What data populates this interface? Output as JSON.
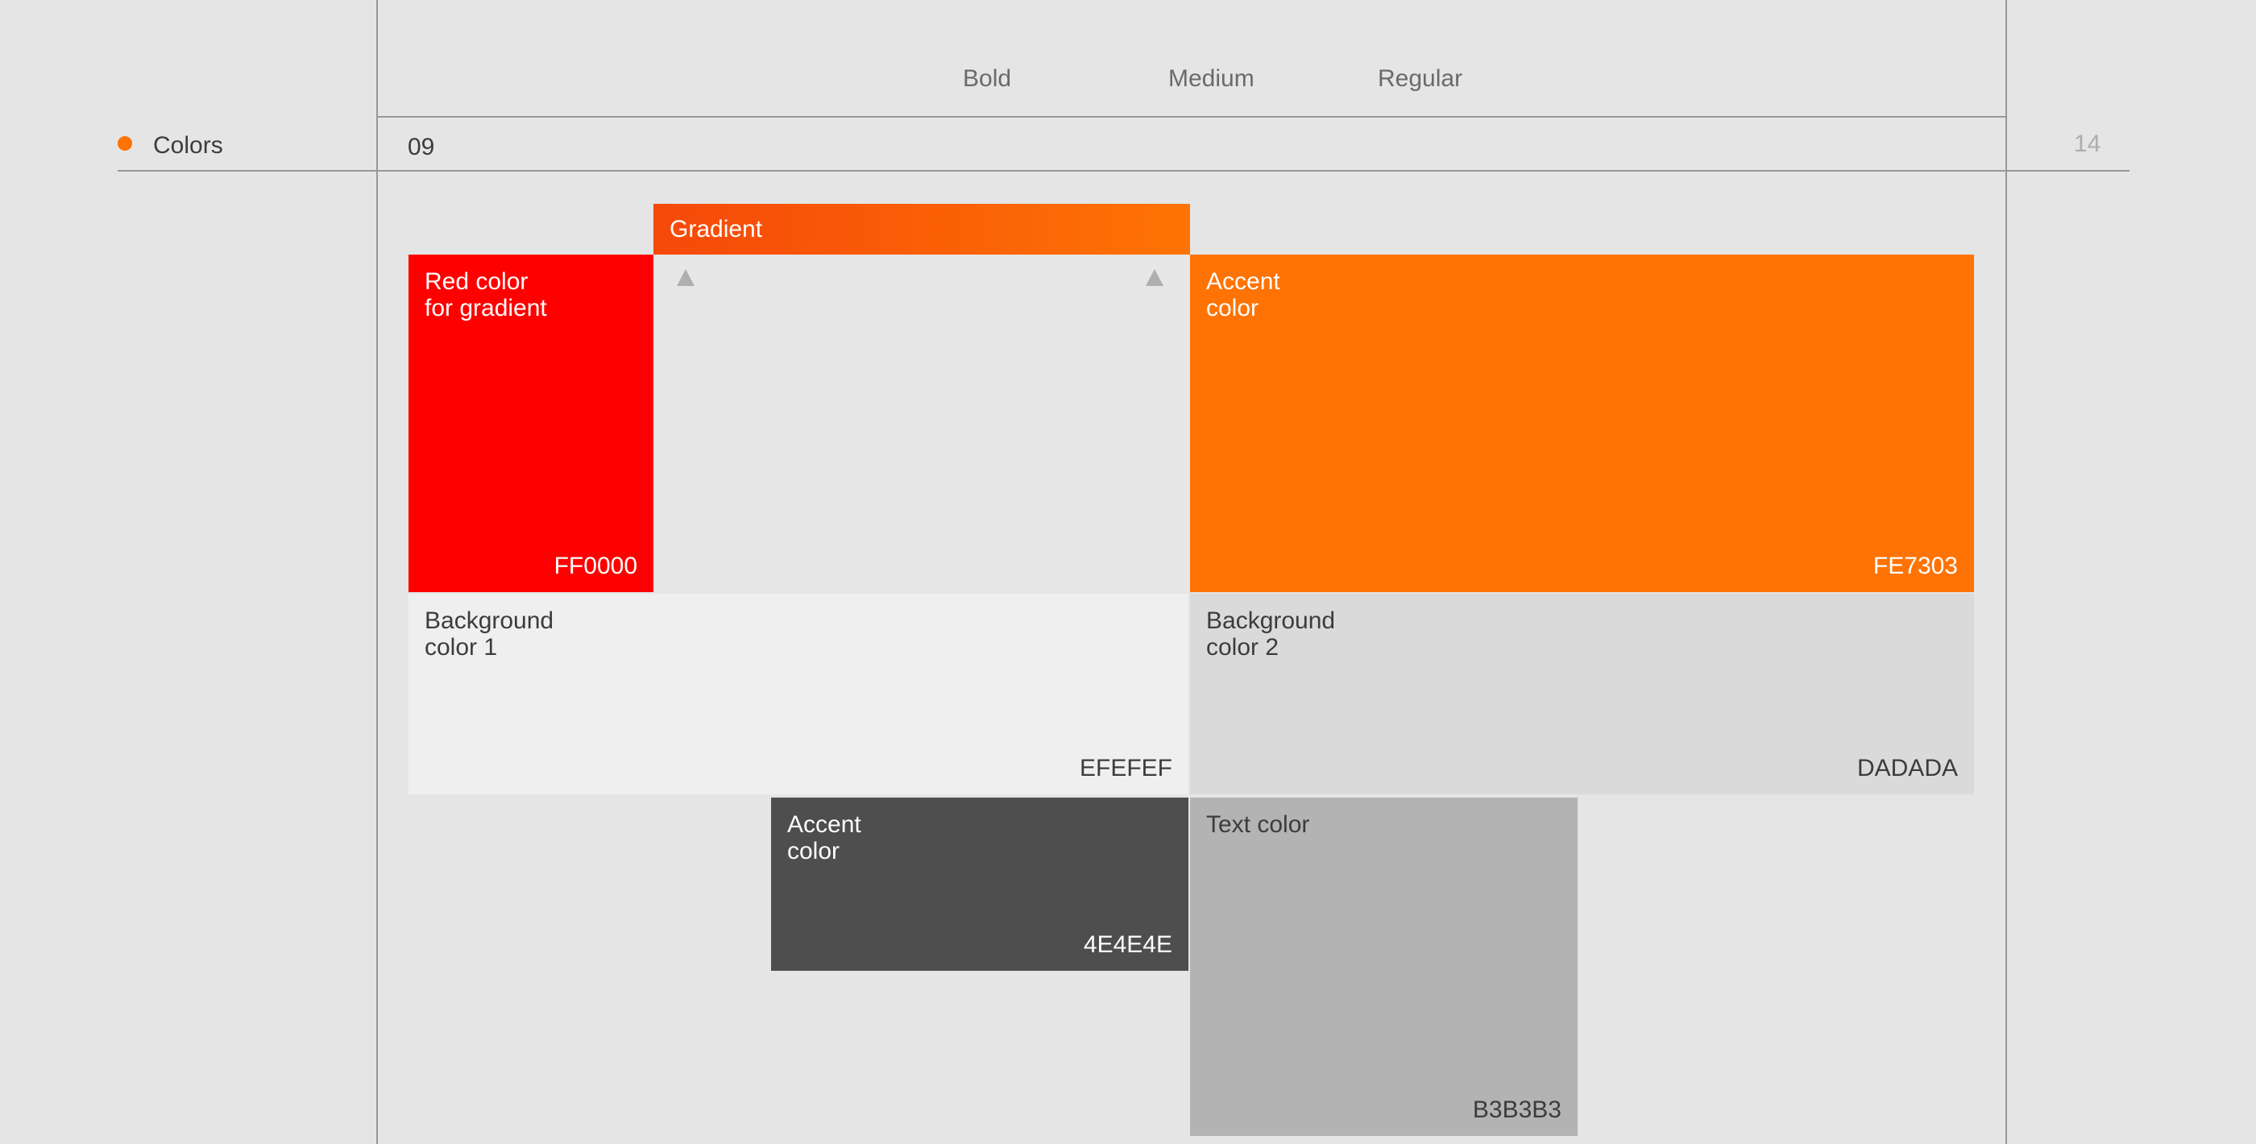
{
  "page": {
    "background_color": "#E5E5E5",
    "guide_line_color": "#989898",
    "page_number": "14"
  },
  "typography_header": {
    "weights": [
      {
        "label": "Bold"
      },
      {
        "label": "Medium"
      },
      {
        "label": "Regular"
      }
    ]
  },
  "section": {
    "bullet_color": "#FE7303",
    "label": "Colors",
    "number": "09"
  },
  "gradient": {
    "label": "Gradient",
    "from_color": "#F5490A",
    "to_color": "#FE7303",
    "stop_marker_color": "#AFAFAF"
  },
  "swatches": {
    "red": {
      "name_line1": "Red color",
      "name_line2": "for gradient",
      "hex": "FF0000",
      "color": "#FF0000",
      "label_color": "#FFFFFF"
    },
    "accent_orange": {
      "name_line1": "Accent",
      "name_line2": "color",
      "hex": "FE7303",
      "color": "#FE7303",
      "label_color": "#FFFFFF"
    },
    "background1": {
      "name_line1": "Background",
      "name_line2": "color 1",
      "hex": "EFEFEF",
      "color": "#EFEFEF",
      "label_color": "#3C3C3C"
    },
    "background2": {
      "name_line1": "Background",
      "name_line2": "color 2",
      "hex": "DADADA",
      "color": "#DADADA",
      "label_color": "#3C3C3C"
    },
    "accent_dark": {
      "name_line1": "Accent",
      "name_line2": "color",
      "hex": "4E4E4E",
      "color": "#4E4E4E",
      "label_color": "#FFFFFF"
    },
    "text_color": {
      "name_line1": "Text color",
      "hex": "B3B3B3",
      "color": "#B3B3B3",
      "label_color": "#3C3C3C"
    }
  }
}
